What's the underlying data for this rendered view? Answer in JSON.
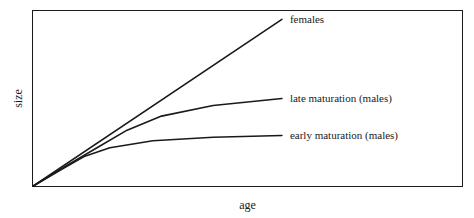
{
  "chart_data": {
    "type": "line",
    "xlabel": "age",
    "ylabel": "size",
    "xlim": [
      0,
      1.0
    ],
    "ylim": [
      0,
      1.0
    ],
    "tick_labels": false,
    "series": [
      {
        "name": "females",
        "color": "#1a1a1a",
        "x": [
          0,
          0.58
        ],
        "values": [
          0,
          0.95
        ]
      },
      {
        "name": "late maturation (males)",
        "color": "#1a1a1a",
        "x": [
          0,
          0.08,
          0.15,
          0.22,
          0.3,
          0.42,
          0.58
        ],
        "values": [
          0,
          0.12,
          0.22,
          0.32,
          0.4,
          0.46,
          0.5
        ]
      },
      {
        "name": "early maturation (males)",
        "color": "#1a1a1a",
        "x": [
          0,
          0.07,
          0.12,
          0.18,
          0.28,
          0.42,
          0.58
        ],
        "values": [
          0,
          0.1,
          0.17,
          0.22,
          0.26,
          0.28,
          0.29
        ]
      }
    ]
  }
}
